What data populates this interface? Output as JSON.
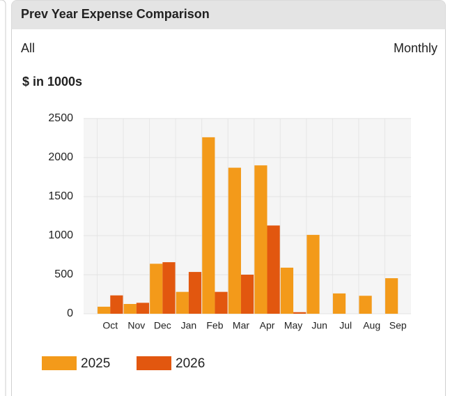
{
  "header": {
    "title": "Prev Year Expense Comparison"
  },
  "filters": {
    "left": "All",
    "right": "Monthly"
  },
  "chart_data": {
    "type": "bar",
    "subtitle": "$ in 1000s",
    "categories": [
      "Oct",
      "Nov",
      "Dec",
      "Jan",
      "Feb",
      "Mar",
      "Apr",
      "May",
      "Jun",
      "Jul",
      "Aug",
      "Sep"
    ],
    "series": [
      {
        "name": "2025",
        "color": "#f39a1a",
        "values": [
          90,
          125,
          640,
          280,
          2260,
          1870,
          1900,
          590,
          1010,
          260,
          230,
          455
        ]
      },
      {
        "name": "2026",
        "color": "#e2570f",
        "values": [
          235,
          140,
          660,
          535,
          280,
          500,
          1130,
          20,
          null,
          null,
          null,
          null
        ]
      }
    ],
    "ylim": [
      0,
      2500
    ],
    "yticks": [
      0,
      500,
      1000,
      1500,
      2000,
      2500
    ],
    "grid": true,
    "legend": "bottom"
  }
}
